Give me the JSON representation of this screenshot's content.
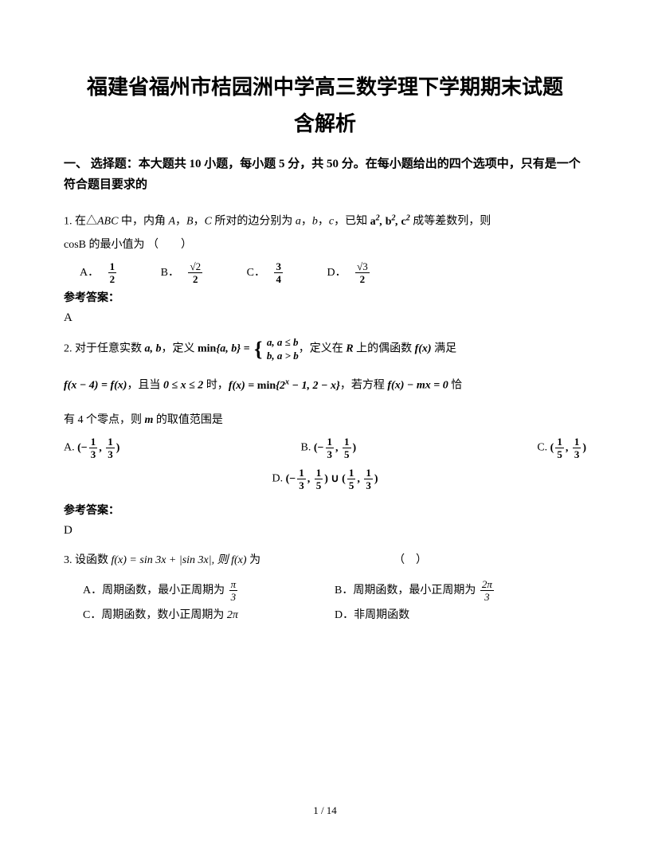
{
  "title_line1": "福建省福州市桔园洲中学高三数学理下学期期末试题",
  "title_line2": "含解析",
  "section1": "一、 选择题：本大题共 10 小题，每小题 5 分，共 50 分。在每小题给出的四个选项中，只有是一个符合题目要求的",
  "q1": {
    "stem_a": "1. 在△",
    "stem_b": " 中，内角 ",
    "stem_c": "，",
    "stem_d": "，",
    "stem_e": " 所对的边分别为 ",
    "stem_f": "，",
    "stem_g": "，",
    "stem_h": "，已知 ",
    "stem_i": " 成等差数列，则",
    "line2": "cosB 的最小值为 （　　）",
    "ital_ABC": "ABC",
    "A": "A",
    "B": "B",
    "C": "C",
    "a": "a",
    "b": "b",
    "c": "c",
    "expr": "a², b², c²",
    "optA_label": "A．",
    "optB_label": "B．",
    "optC_label": "C．",
    "optD_label": "D．",
    "optA_num": "1",
    "optA_den": "2",
    "optB_num": "√2",
    "optB_den": "2",
    "optC_num": "3",
    "optC_den": "4",
    "optD_num": "√3",
    "optD_den": "2",
    "ref": "参考答案：",
    "ans": "A"
  },
  "q2": {
    "stem_a": "2. 对于任意实数 ",
    "ab": "a, b",
    "stem_b": "，定义 ",
    "min_lhs": "min{a, b} = ",
    "case1": "a, a ≤ b",
    "case2": "b, a > b",
    "stem_c": "，定义在 ",
    "R": "R",
    "stem_d": " 上的偶函数 ",
    "fx": "f(x)",
    "stem_e": " 满足",
    "line2_a": "f(x − 4) = f(x)",
    "line2_b": "，且当 ",
    "cond": "0 ≤ x ≤ 2",
    "line2_c": " 时，",
    "def": "f(x) = min{2ˣ − 1, 2 − x}",
    "line2_d": "，若方程 ",
    "eq": "f(x) − mx = 0",
    "line2_e": " 恰",
    "line3_a": "有 4 个零点，则 ",
    "m": "m",
    "line3_b": " 的取值范围是",
    "optA": "(−1/3, 1/3)",
    "optB": "(−1/3, 1/5)",
    "optC": "(1/5, 1/3)",
    "optD": "(−1/3, 1/5) ∪ (1/5, 1/3)",
    "A": "A.",
    "Bl": "B.",
    "Cl": "C.",
    "Dl": "D.",
    "ref": "参考答案：",
    "ans": "D"
  },
  "q3": {
    "stem_a": "3. 设函数 ",
    "fdef": "f(x) = sin 3x + |sin 3x|, 则 f(x)",
    "stem_b": " 为",
    "paren": "（　）",
    "optA_pre": "A．周期函数，最小正周期为 ",
    "optA_num": "π",
    "optA_den": "3",
    "optB_pre": "B．周期函数，最小正周期为 ",
    "optB_num": "2π",
    "optB_den": "3",
    "optC_pre": "C．周期函数，数小正周期为 ",
    "optC_val": "2π",
    "optD": "D．非周期函数"
  },
  "pagenum": "1 / 14"
}
